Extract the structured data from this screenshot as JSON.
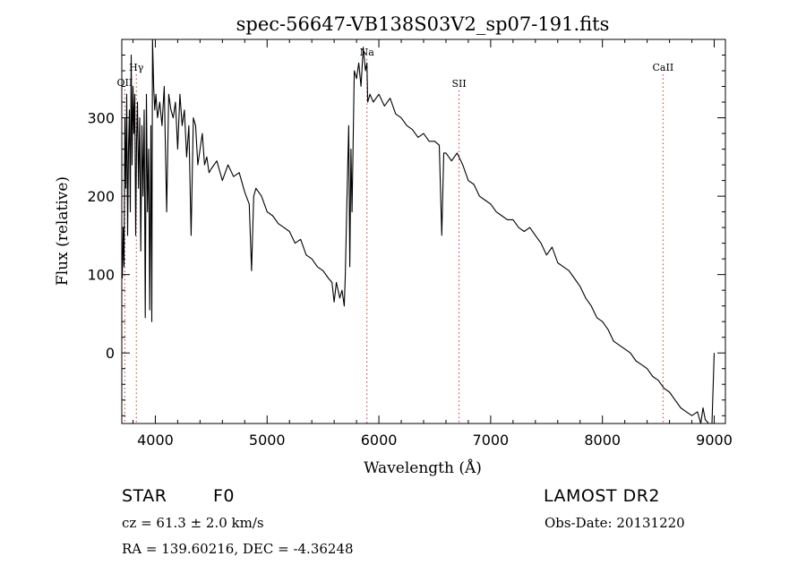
{
  "chart_data": {
    "type": "line",
    "title": "spec-56647-VB138S03V2_sp07-191.fits",
    "xlabel": "Wavelength (Å)",
    "ylabel": "Flux (relative)",
    "xlim": [
      3700,
      9100
    ],
    "ylim": [
      -90,
      400
    ],
    "xticks": [
      4000,
      5000,
      6000,
      7000,
      8000,
      9000
    ],
    "yticks": [
      0,
      100,
      200,
      300
    ],
    "grid": false,
    "line_color": "#000000",
    "marker_color": "#cc3333",
    "line_markers": [
      {
        "label": "OII",
        "x": 3727
      },
      {
        "label": "Hγ",
        "x": 3830
      },
      {
        "label": "Na",
        "x": 5893
      },
      {
        "label": "SII",
        "x": 6717
      },
      {
        "label": "CaII",
        "x": 8542
      }
    ],
    "series": [
      {
        "x": [
          3705,
          3712,
          3720,
          3728,
          3736,
          3744,
          3752,
          3760,
          3768,
          3776,
          3784,
          3792,
          3800,
          3808,
          3816,
          3824,
          3832,
          3840,
          3850,
          3860,
          3870,
          3880,
          3890,
          3900,
          3910,
          3920,
          3930,
          3940,
          3950,
          3960,
          3968,
          3975,
          3985,
          3995,
          4005,
          4020,
          4040,
          4060,
          4080,
          4101,
          4120,
          4140,
          4160,
          4180,
          4200,
          4220,
          4240,
          4260,
          4280,
          4300,
          4320,
          4340,
          4360,
          4380,
          4400,
          4420,
          4440,
          4460,
          4480,
          4500,
          4550,
          4600,
          4650,
          4700,
          4750,
          4800,
          4840,
          4861,
          4880,
          4900,
          4950,
          5000,
          5050,
          5100,
          5150,
          5200,
          5250,
          5300,
          5350,
          5400,
          5450,
          5500,
          5550,
          5580,
          5600,
          5620,
          5650,
          5670,
          5690,
          5700,
          5710,
          5720,
          5730,
          5740,
          5750,
          5760,
          5780,
          5800,
          5820,
          5840,
          5860,
          5880,
          5893,
          5900,
          5920,
          5950,
          6000,
          6050,
          6100,
          6150,
          6200,
          6250,
          6300,
          6350,
          6400,
          6450,
          6500,
          6540,
          6563,
          6580,
          6600,
          6650,
          6700,
          6750,
          6800,
          6850,
          6900,
          6950,
          7000,
          7050,
          7100,
          7150,
          7200,
          7250,
          7300,
          7350,
          7400,
          7450,
          7500,
          7550,
          7600,
          7650,
          7700,
          7750,
          7800,
          7850,
          7900,
          7950,
          8000,
          8050,
          8100,
          8150,
          8200,
          8250,
          8300,
          8350,
          8400,
          8450,
          8500,
          8550,
          8600,
          8650,
          8700,
          8750,
          8800,
          8850,
          8880,
          8900,
          8920,
          8950,
          8980,
          9000
        ],
        "y": [
          95,
          160,
          110,
          300,
          210,
          330,
          150,
          260,
          310,
          180,
          380,
          240,
          340,
          280,
          330,
          150,
          270,
          320,
          210,
          300,
          130,
          290,
          200,
          310,
          45,
          330,
          180,
          260,
          55,
          290,
          40,
          400,
          340,
          310,
          330,
          300,
          320,
          290,
          340,
          180,
          330,
          310,
          300,
          320,
          260,
          330,
          290,
          310,
          250,
          290,
          150,
          300,
          290,
          240,
          260,
          280,
          240,
          250,
          230,
          235,
          245,
          220,
          240,
          225,
          230,
          205,
          190,
          105,
          200,
          210,
          200,
          180,
          175,
          165,
          160,
          155,
          140,
          145,
          125,
          120,
          110,
          105,
          95,
          90,
          65,
          90,
          70,
          80,
          60,
          100,
          170,
          230,
          290,
          110,
          260,
          180,
          360,
          350,
          370,
          340,
          390,
          360,
          370,
          320,
          330,
          320,
          330,
          315,
          325,
          305,
          300,
          290,
          285,
          275,
          280,
          270,
          270,
          265,
          150,
          255,
          255,
          245,
          255,
          240,
          220,
          215,
          200,
          195,
          190,
          180,
          175,
          170,
          170,
          160,
          155,
          160,
          150,
          140,
          125,
          135,
          115,
          110,
          105,
          95,
          85,
          70,
          60,
          45,
          40,
          30,
          15,
          10,
          5,
          0,
          -10,
          -15,
          -20,
          -30,
          -35,
          -45,
          -50,
          -60,
          -70,
          -75,
          -80,
          -75,
          -90,
          -70,
          -85,
          -95,
          -90,
          0
        ]
      }
    ]
  },
  "info": {
    "class_label": "STAR",
    "subclass_label": "F0",
    "survey_label": "LAMOST DR2",
    "cz_text": "cz = 61.3 ± 2.0 km/s",
    "obs_date_text": "Obs-Date: 20131220",
    "radec_text": "RA = 139.60216, DEC =  -4.36248"
  }
}
